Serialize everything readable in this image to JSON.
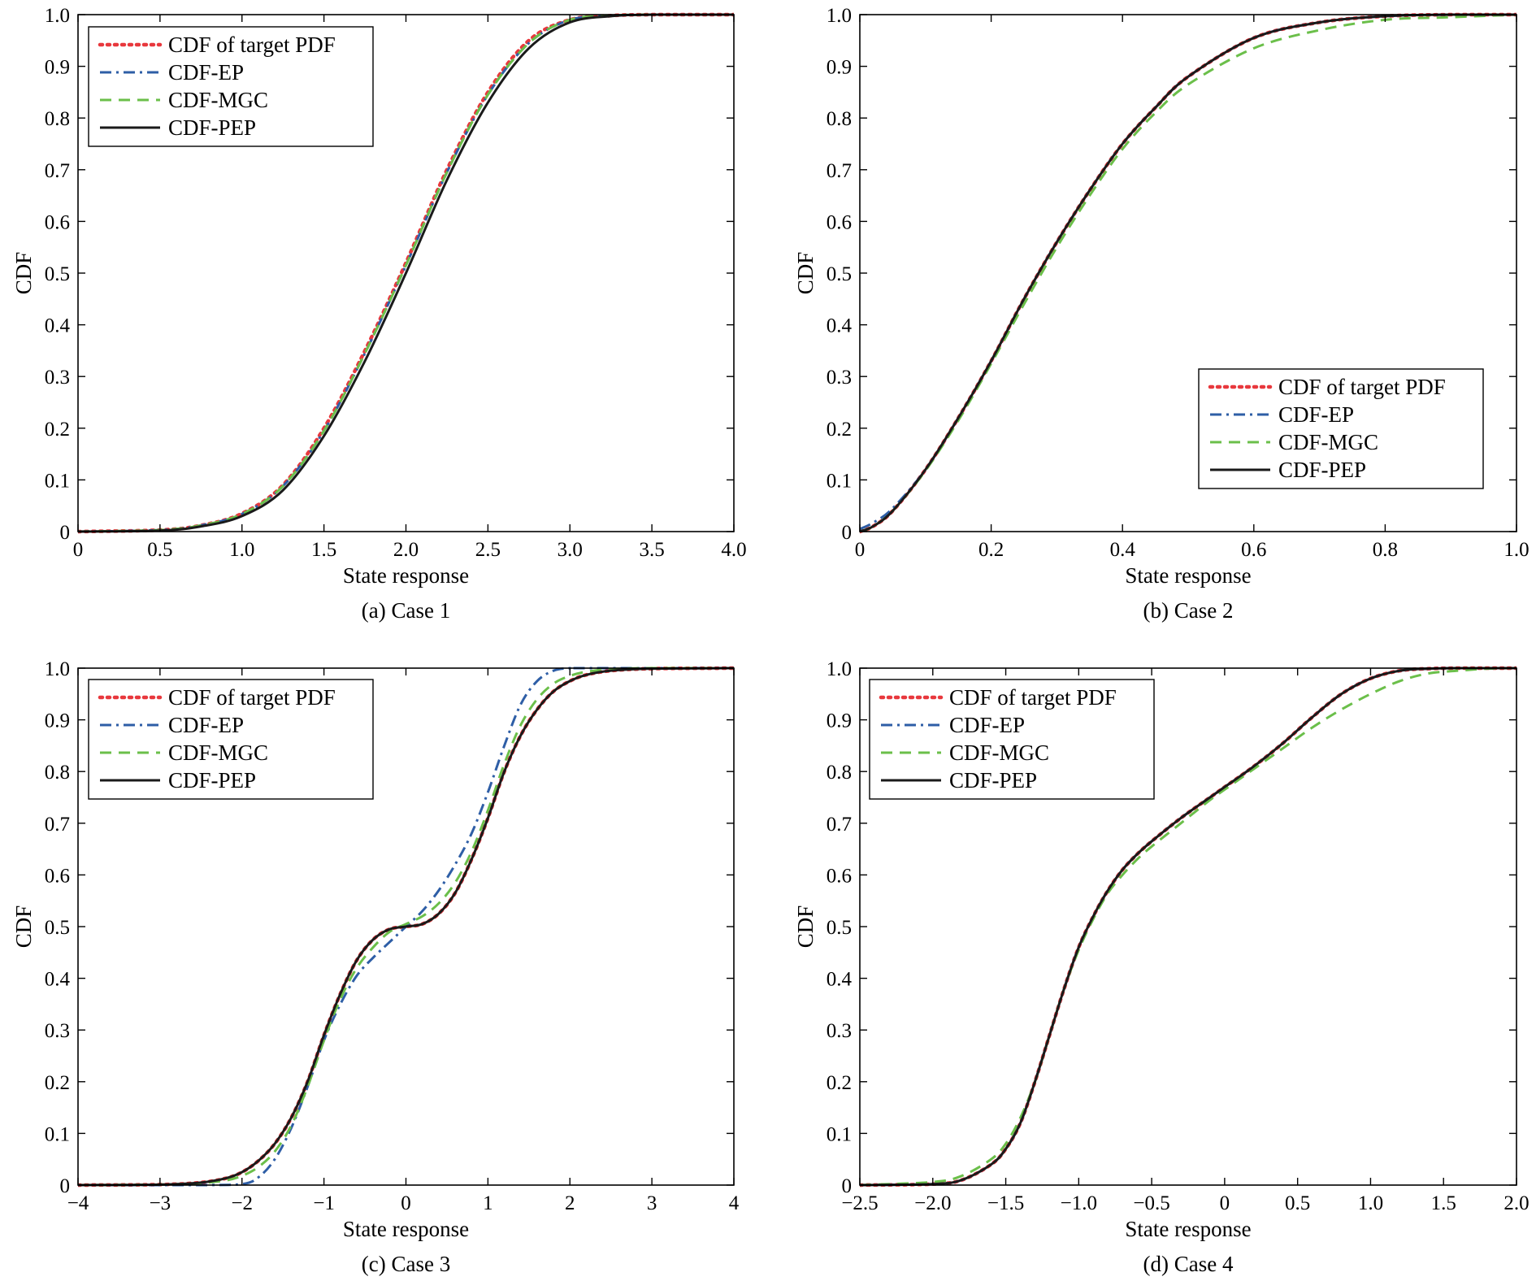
{
  "chart_data": [
    {
      "type": "line",
      "caption": "(a) Case 1",
      "xlabel": "State response",
      "ylabel": "CDF",
      "xlim": [
        0,
        4
      ],
      "ylim": [
        0,
        1
      ],
      "xticks": [
        0,
        0.5,
        1,
        1.5,
        2,
        2.5,
        3,
        3.5,
        4
      ],
      "xtick_labels": [
        "0",
        "0.5",
        "1.0",
        "1.5",
        "2.0",
        "2.5",
        "3.0",
        "3.5",
        "4.0"
      ],
      "yticks": [
        0,
        0.1,
        0.2,
        0.3,
        0.4,
        0.5,
        0.6,
        0.7,
        0.8,
        0.9,
        1
      ],
      "ytick_labels": [
        "0",
        "0.1",
        "0.2",
        "0.3",
        "0.4",
        "0.5",
        "0.6",
        "0.7",
        "0.8",
        "0.9",
        "1.0"
      ],
      "legend_position": "top-left",
      "grid": false,
      "series": [
        {
          "name": "CDF of target PDF",
          "style": "dotted",
          "color": "#e8383d",
          "x": [
            0,
            0.5,
            0.75,
            1.0,
            1.25,
            1.5,
            1.75,
            2.0,
            2.25,
            2.5,
            2.75,
            3.0,
            3.25,
            3.5,
            4.0
          ],
          "y": [
            0,
            0.003,
            0.012,
            0.035,
            0.09,
            0.2,
            0.35,
            0.52,
            0.7,
            0.85,
            0.95,
            0.99,
            0.998,
            1.0,
            1.0
          ]
        },
        {
          "name": "CDF-EP",
          "style": "dashdot",
          "color": "#2e5ea6",
          "x": [
            0,
            0.5,
            0.75,
            1.0,
            1.25,
            1.5,
            1.75,
            2.0,
            2.25,
            2.5,
            2.75,
            3.0,
            3.25,
            3.5,
            4.0
          ],
          "y": [
            0,
            0.003,
            0.012,
            0.034,
            0.088,
            0.195,
            0.345,
            0.515,
            0.695,
            0.845,
            0.945,
            0.99,
            0.998,
            1.0,
            1.0
          ]
        },
        {
          "name": "CDF-MGC",
          "style": "dashed",
          "color": "#6bbf4a",
          "x": [
            0,
            0.5,
            0.75,
            1.0,
            1.25,
            1.5,
            1.75,
            2.0,
            2.25,
            2.5,
            2.75,
            3.0,
            3.25,
            3.5,
            4.0
          ],
          "y": [
            0,
            0.003,
            0.012,
            0.034,
            0.088,
            0.195,
            0.345,
            0.515,
            0.695,
            0.845,
            0.945,
            0.99,
            0.998,
            1.0,
            1.0
          ]
        },
        {
          "name": "CDF-PEP",
          "style": "solid",
          "color": "#1a1a1a",
          "x": [
            0,
            0.5,
            0.75,
            1.0,
            1.25,
            1.5,
            1.75,
            2.0,
            2.25,
            2.5,
            2.75,
            3.0,
            3.25,
            3.5,
            4.0
          ],
          "y": [
            0,
            0.002,
            0.01,
            0.03,
            0.08,
            0.185,
            0.33,
            0.5,
            0.68,
            0.83,
            0.935,
            0.985,
            0.997,
            1.0,
            1.0
          ]
        }
      ]
    },
    {
      "type": "line",
      "caption": "(b) Case 2",
      "xlabel": "State response",
      "ylabel": "CDF",
      "xlim": [
        0,
        1
      ],
      "ylim": [
        0,
        1
      ],
      "xticks": [
        0,
        0.2,
        0.4,
        0.6,
        0.8,
        1
      ],
      "xtick_labels": [
        "0",
        "0.2",
        "0.4",
        "0.6",
        "0.8",
        "1.0"
      ],
      "yticks": [
        0,
        0.1,
        0.2,
        0.3,
        0.4,
        0.5,
        0.6,
        0.7,
        0.8,
        0.9,
        1
      ],
      "ytick_labels": [
        "0",
        "0.1",
        "0.2",
        "0.3",
        "0.4",
        "0.5",
        "0.6",
        "0.7",
        "0.8",
        "0.9",
        "1.0"
      ],
      "legend_position": "bottom-right",
      "grid": false,
      "series": [
        {
          "name": "CDF of target PDF",
          "style": "dotted",
          "color": "#e8383d",
          "x": [
            0,
            0.02,
            0.05,
            0.1,
            0.15,
            0.2,
            0.25,
            0.3,
            0.35,
            0.4,
            0.45,
            0.5,
            0.6,
            0.7,
            0.8,
            0.9,
            1.0
          ],
          "y": [
            0,
            0.01,
            0.04,
            0.12,
            0.22,
            0.33,
            0.45,
            0.56,
            0.66,
            0.75,
            0.82,
            0.88,
            0.955,
            0.985,
            0.997,
            1.0,
            1.0
          ]
        },
        {
          "name": "CDF-EP",
          "style": "dashdot",
          "color": "#2e5ea6",
          "x": [
            0,
            0.02,
            0.05,
            0.1,
            0.15,
            0.2,
            0.25,
            0.3,
            0.35,
            0.4,
            0.45,
            0.5,
            0.6,
            0.7,
            0.8,
            0.9,
            1.0
          ],
          "y": [
            0.005,
            0.017,
            0.045,
            0.12,
            0.22,
            0.33,
            0.45,
            0.56,
            0.66,
            0.75,
            0.82,
            0.88,
            0.955,
            0.985,
            0.997,
            1.0,
            1.0
          ]
        },
        {
          "name": "CDF-MGC",
          "style": "dashed",
          "color": "#6bbf4a",
          "x": [
            0,
            0.02,
            0.05,
            0.1,
            0.15,
            0.2,
            0.25,
            0.3,
            0.35,
            0.4,
            0.45,
            0.5,
            0.6,
            0.7,
            0.8,
            0.9,
            1.0
          ],
          "y": [
            0,
            0.01,
            0.04,
            0.118,
            0.215,
            0.325,
            0.44,
            0.55,
            0.65,
            0.74,
            0.81,
            0.865,
            0.935,
            0.97,
            0.99,
            0.995,
            1.0
          ]
        },
        {
          "name": "CDF-PEP",
          "style": "solid",
          "color": "#1a1a1a",
          "x": [
            0,
            0.02,
            0.05,
            0.1,
            0.15,
            0.2,
            0.25,
            0.3,
            0.35,
            0.4,
            0.45,
            0.5,
            0.6,
            0.7,
            0.8,
            0.9,
            1.0
          ],
          "y": [
            0,
            0.01,
            0.04,
            0.12,
            0.22,
            0.33,
            0.45,
            0.56,
            0.66,
            0.75,
            0.82,
            0.88,
            0.955,
            0.985,
            0.997,
            1.0,
            1.0
          ]
        }
      ]
    },
    {
      "type": "line",
      "caption": "(c) Case 3",
      "xlabel": "State response",
      "ylabel": "CDF",
      "xlim": [
        -4,
        4
      ],
      "ylim": [
        0,
        1
      ],
      "xticks": [
        -4,
        -3,
        -2,
        -1,
        0,
        1,
        2,
        3,
        4
      ],
      "xtick_labels": [
        "−4",
        "−3",
        "−2",
        "−1",
        "0",
        "1",
        "2",
        "3",
        "4"
      ],
      "yticks": [
        0,
        0.1,
        0.2,
        0.3,
        0.4,
        0.5,
        0.6,
        0.7,
        0.8,
        0.9,
        1
      ],
      "ytick_labels": [
        "0",
        "0.1",
        "0.2",
        "0.3",
        "0.4",
        "0.5",
        "0.6",
        "0.7",
        "0.8",
        "0.9",
        "1.0"
      ],
      "legend_position": "top-left",
      "grid": false,
      "series": [
        {
          "name": "CDF of target PDF",
          "style": "dotted",
          "color": "#e8383d",
          "x": [
            -4,
            -3,
            -2.5,
            -2.2,
            -2.0,
            -1.8,
            -1.6,
            -1.4,
            -1.2,
            -1.0,
            -0.8,
            -0.6,
            -0.4,
            -0.2,
            0,
            0.2,
            0.4,
            0.6,
            0.8,
            1.0,
            1.2,
            1.4,
            1.6,
            1.8,
            2.0,
            2.2,
            2.5,
            3.0,
            4.0
          ],
          "y": [
            0,
            0.001,
            0.005,
            0.013,
            0.025,
            0.047,
            0.08,
            0.13,
            0.2,
            0.29,
            0.37,
            0.435,
            0.475,
            0.495,
            0.5,
            0.505,
            0.525,
            0.565,
            0.63,
            0.71,
            0.8,
            0.87,
            0.92,
            0.955,
            0.975,
            0.987,
            0.995,
            0.999,
            1.0
          ]
        },
        {
          "name": "CDF-EP",
          "style": "dashdot",
          "color": "#2e5ea6",
          "x": [
            -4,
            -2.5,
            -2.0,
            -1.8,
            -1.6,
            -1.4,
            -1.2,
            -1.0,
            -0.8,
            -0.6,
            -0.4,
            -0.2,
            0,
            0.2,
            0.4,
            0.6,
            0.8,
            1.0,
            1.2,
            1.4,
            1.6,
            1.8,
            2.0,
            2.2,
            4.0
          ],
          "y": [
            0,
            0,
            0.002,
            0.015,
            0.05,
            0.11,
            0.19,
            0.28,
            0.35,
            0.405,
            0.44,
            0.47,
            0.5,
            0.53,
            0.57,
            0.62,
            0.68,
            0.76,
            0.85,
            0.93,
            0.975,
            0.995,
            1.0,
            1.0,
            1.0
          ]
        },
        {
          "name": "CDF-MGC",
          "style": "dashed",
          "color": "#6bbf4a",
          "x": [
            -4,
            -3,
            -2.5,
            -2.2,
            -2.0,
            -1.8,
            -1.6,
            -1.4,
            -1.2,
            -1.0,
            -0.8,
            -0.6,
            -0.4,
            -0.2,
            0,
            0.2,
            0.4,
            0.6,
            0.8,
            1.0,
            1.2,
            1.4,
            1.6,
            1.8,
            2.0,
            2.2,
            2.5,
            3.0,
            4.0
          ],
          "y": [
            0,
            0.001,
            0.004,
            0.009,
            0.018,
            0.035,
            0.065,
            0.115,
            0.19,
            0.28,
            0.36,
            0.42,
            0.46,
            0.49,
            0.505,
            0.52,
            0.545,
            0.585,
            0.645,
            0.725,
            0.815,
            0.89,
            0.94,
            0.97,
            0.985,
            0.993,
            0.998,
            1.0,
            1.0
          ]
        },
        {
          "name": "CDF-PEP",
          "style": "solid",
          "color": "#1a1a1a",
          "x": [
            -4,
            -3,
            -2.5,
            -2.2,
            -2.0,
            -1.8,
            -1.6,
            -1.4,
            -1.2,
            -1.0,
            -0.8,
            -0.6,
            -0.4,
            -0.2,
            0,
            0.2,
            0.4,
            0.6,
            0.8,
            1.0,
            1.2,
            1.4,
            1.6,
            1.8,
            2.0,
            2.2,
            2.5,
            3.0,
            4.0
          ],
          "y": [
            0,
            0.001,
            0.005,
            0.013,
            0.025,
            0.047,
            0.08,
            0.13,
            0.2,
            0.29,
            0.37,
            0.435,
            0.475,
            0.495,
            0.5,
            0.505,
            0.525,
            0.565,
            0.63,
            0.71,
            0.8,
            0.87,
            0.92,
            0.955,
            0.975,
            0.987,
            0.995,
            0.999,
            1.0
          ]
        }
      ]
    },
    {
      "type": "line",
      "caption": "(d) Case 4",
      "xlabel": "State response",
      "ylabel": "CDF",
      "xlim": [
        -2.5,
        2
      ],
      "ylim": [
        0,
        1
      ],
      "xticks": [
        -2.5,
        -2,
        -1.5,
        -1,
        -0.5,
        0,
        0.5,
        1,
        1.5,
        2
      ],
      "xtick_labels": [
        "−2.5",
        "−2.0",
        "−1.5",
        "−1.0",
        "−0.5",
        "0",
        "0.5",
        "1.0",
        "1.5",
        "2.0"
      ],
      "yticks": [
        0,
        0.1,
        0.2,
        0.3,
        0.4,
        0.5,
        0.6,
        0.7,
        0.8,
        0.9,
        1
      ],
      "ytick_labels": [
        "0",
        "0.1",
        "0.2",
        "0.3",
        "0.4",
        "0.5",
        "0.6",
        "0.7",
        "0.8",
        "0.9",
        "1.0"
      ],
      "legend_position": "top-left",
      "grid": false,
      "series": [
        {
          "name": "CDF of target PDF",
          "style": "dotted",
          "color": "#e8383d",
          "x": [
            -2.5,
            -2.0,
            -1.8,
            -1.6,
            -1.5,
            -1.4,
            -1.3,
            -1.2,
            -1.1,
            -1.0,
            -0.9,
            -0.8,
            -0.7,
            -0.6,
            -0.5,
            -0.3,
            -0.1,
            0,
            0.2,
            0.4,
            0.6,
            0.8,
            1.0,
            1.2,
            1.4,
            1.6,
            2.0
          ],
          "y": [
            0,
            0.002,
            0.01,
            0.04,
            0.07,
            0.12,
            0.2,
            0.29,
            0.38,
            0.46,
            0.52,
            0.57,
            0.61,
            0.64,
            0.665,
            0.71,
            0.75,
            0.77,
            0.81,
            0.855,
            0.905,
            0.95,
            0.98,
            0.995,
            0.999,
            1.0,
            1.0
          ]
        },
        {
          "name": "CDF-EP",
          "style": "dashdot",
          "color": "#2e5ea6",
          "x": [
            -2.5,
            -2.0,
            -1.8,
            -1.6,
            -1.5,
            -1.4,
            -1.3,
            -1.2,
            -1.1,
            -1.0,
            -0.9,
            -0.8,
            -0.7,
            -0.6,
            -0.5,
            -0.3,
            -0.1,
            0,
            0.2,
            0.4,
            0.6,
            0.8,
            1.0,
            1.2,
            1.4,
            1.6,
            2.0
          ],
          "y": [
            0,
            0.002,
            0.01,
            0.04,
            0.07,
            0.12,
            0.2,
            0.29,
            0.38,
            0.46,
            0.52,
            0.57,
            0.61,
            0.64,
            0.665,
            0.71,
            0.75,
            0.77,
            0.81,
            0.855,
            0.905,
            0.95,
            0.98,
            0.995,
            0.999,
            1.0,
            1.0
          ]
        },
        {
          "name": "CDF-MGC",
          "style": "dashed",
          "color": "#6bbf4a",
          "x": [
            -2.5,
            -2.0,
            -1.8,
            -1.6,
            -1.5,
            -1.4,
            -1.3,
            -1.2,
            -1.1,
            -1.0,
            -0.9,
            -0.8,
            -0.7,
            -0.6,
            -0.5,
            -0.3,
            -0.1,
            0,
            0.2,
            0.4,
            0.6,
            0.8,
            1.0,
            1.2,
            1.4,
            1.6,
            1.8,
            2.0
          ],
          "y": [
            0,
            0.006,
            0.018,
            0.05,
            0.08,
            0.13,
            0.2,
            0.29,
            0.38,
            0.455,
            0.515,
            0.565,
            0.6,
            0.63,
            0.655,
            0.7,
            0.745,
            0.765,
            0.805,
            0.845,
            0.885,
            0.92,
            0.95,
            0.975,
            0.99,
            0.995,
            0.999,
            1.0
          ]
        },
        {
          "name": "CDF-PEP",
          "style": "solid",
          "color": "#1a1a1a",
          "x": [
            -2.5,
            -2.0,
            -1.8,
            -1.6,
            -1.5,
            -1.4,
            -1.3,
            -1.2,
            -1.1,
            -1.0,
            -0.9,
            -0.8,
            -0.7,
            -0.6,
            -0.5,
            -0.3,
            -0.1,
            0,
            0.2,
            0.4,
            0.6,
            0.8,
            1.0,
            1.2,
            1.4,
            1.6,
            2.0
          ],
          "y": [
            0,
            0.002,
            0.01,
            0.04,
            0.07,
            0.12,
            0.2,
            0.29,
            0.38,
            0.46,
            0.52,
            0.57,
            0.61,
            0.64,
            0.665,
            0.71,
            0.75,
            0.77,
            0.81,
            0.855,
            0.905,
            0.95,
            0.98,
            0.995,
            0.999,
            1.0,
            1.0
          ]
        }
      ]
    }
  ]
}
